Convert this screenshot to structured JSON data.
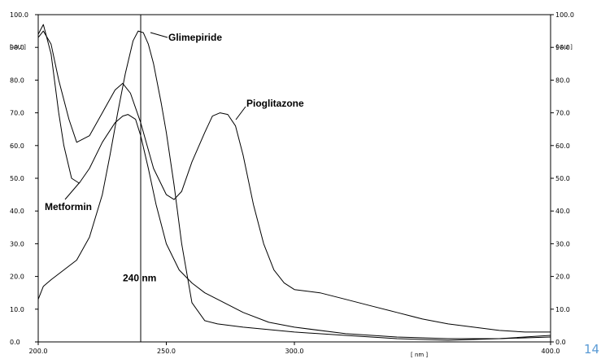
{
  "page_number": "14",
  "chart_data": {
    "type": "line",
    "title": "",
    "xlabel": "[ nm ]",
    "ylabel": "[ AU ]",
    "xlim": [
      200,
      400
    ],
    "ylim": [
      0,
      100
    ],
    "x_ticks": [
      "200.0",
      "250.0",
      "300.0",
      "400.0"
    ],
    "y_ticks": [
      "0.0",
      "10.0",
      "20.0",
      "30.0",
      "40.0",
      "50.0",
      "60.0",
      "70.0",
      "80.0",
      "90.0",
      "100.0"
    ],
    "grid": false,
    "marker_line": {
      "x": 240,
      "label": "240 nm"
    },
    "series": [
      {
        "name": "Glimepiride",
        "x": [
          200,
          202,
          205,
          210,
          215,
          220,
          225,
          228,
          231,
          234,
          237,
          239,
          241,
          243,
          245,
          248,
          250,
          253,
          256,
          260,
          265,
          270,
          280,
          300,
          320,
          340,
          360,
          380,
          400
        ],
        "y": [
          13,
          17,
          19,
          22,
          25,
          32,
          45,
          57,
          70,
          82,
          92,
          95,
          94.5,
          91,
          85,
          73,
          64,
          48,
          30,
          12,
          6.5,
          5.5,
          4.5,
          3,
          2,
          1,
          0.5,
          1,
          2
        ]
      },
      {
        "name": "Pioglitazone",
        "x": [
          200,
          202,
          205,
          208,
          212,
          215,
          220,
          225,
          230,
          233,
          236,
          240,
          245,
          250,
          253,
          256,
          260,
          265,
          268,
          271,
          274,
          277,
          280,
          284,
          288,
          292,
          296,
          300,
          310,
          320,
          330,
          340,
          350,
          360,
          370,
          380,
          390,
          400
        ],
        "y": [
          93,
          95,
          91,
          80,
          68,
          61,
          63,
          70,
          77,
          79,
          76,
          67,
          53,
          45,
          43.5,
          46,
          55,
          64,
          69,
          70,
          69.5,
          66,
          57,
          42,
          30,
          22,
          18,
          16,
          15,
          13,
          11,
          9,
          7,
          5.5,
          4.5,
          3.5,
          3,
          3
        ]
      },
      {
        "name": "Metformin",
        "x": [
          200,
          202,
          205,
          208,
          210,
          213,
          216,
          220,
          225,
          230,
          233,
          235,
          238,
          240,
          243,
          246,
          250,
          255,
          260,
          265,
          270,
          280,
          290,
          300,
          320,
          340,
          360,
          380,
          400
        ],
        "y": [
          94,
          97,
          88,
          70,
          60,
          50,
          48.5,
          53,
          61,
          67,
          69,
          69.5,
          68,
          63,
          53,
          42,
          30,
          22,
          18,
          15,
          13,
          9,
          6,
          4.5,
          2.5,
          1.5,
          1,
          1,
          1.5
        ]
      }
    ]
  }
}
